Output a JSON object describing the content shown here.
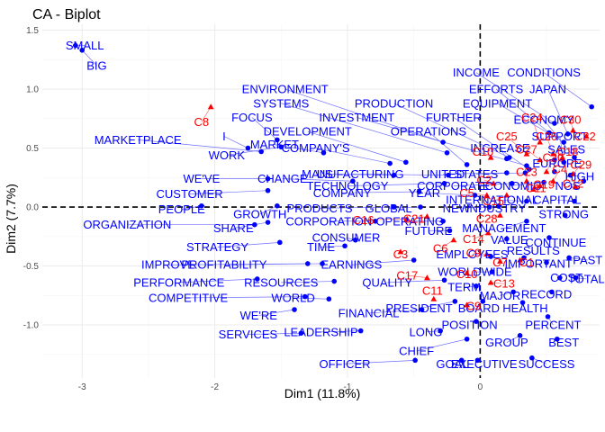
{
  "chart_data": {
    "type": "scatter",
    "title": "CA - Biplot",
    "xlabel": "Dim1 (11.8%)",
    "ylabel": "Dim2 (7.7%)",
    "xlim": [
      -3.3,
      0.9
    ],
    "ylim": [
      -1.45,
      1.55
    ],
    "x_ticks": [
      "-3",
      "-2",
      "-1",
      "0"
    ],
    "x_tick_values": [
      -3,
      -2,
      -1,
      0
    ],
    "y_ticks": [
      "-1.0",
      "-0.5",
      "0.0",
      "0.5",
      "1.0",
      "1.5"
    ],
    "y_tick_values": [
      -1.0,
      -0.5,
      0.0,
      0.5,
      1.0,
      1.5
    ],
    "grid": true,
    "reference_lines": {
      "x": 0,
      "y": 0
    },
    "colors": {
      "rows": "#0000ff",
      "columns": "#ff0000"
    },
    "series": [
      {
        "marker": "circle",
        "points": [
          {
            "label": "SMALL",
            "x": -3.05,
            "y": 1.37,
            "lx": -2.98,
            "ly": 1.37
          },
          {
            "label": "BIG",
            "x": -3.0,
            "y": 1.33,
            "lx": -2.89,
            "ly": 1.2
          },
          {
            "label": "INCOME",
            "x": 0.56,
            "y": 0.71,
            "lx": -0.03,
            "ly": 1.14
          },
          {
            "label": "CONDITIONS",
            "x": 0.84,
            "y": 0.85,
            "lx": 0.48,
            "ly": 1.14
          },
          {
            "label": "EFFORTS",
            "x": 0.52,
            "y": 0.63,
            "lx": 0.12,
            "ly": 1.0
          },
          {
            "label": "JAPAN",
            "x": 0.66,
            "y": 0.62,
            "lx": 0.51,
            "ly": 1.0
          },
          {
            "label": "ENVIRONMENT",
            "x": -0.28,
            "y": 0.55,
            "lx": -1.47,
            "ly": 1.0
          },
          {
            "label": "EQUIPMENT",
            "x": 0.63,
            "y": 0.55,
            "lx": 0.13,
            "ly": 0.88
          },
          {
            "label": "SYSTEMS",
            "x": -0.25,
            "y": 0.46,
            "lx": -1.5,
            "ly": 0.88
          },
          {
            "label": "PRODUCTION",
            "x": 0.22,
            "y": 0.42,
            "lx": -0.65,
            "ly": 0.88
          },
          {
            "label": "ECONOMY",
            "x": 0.71,
            "y": 0.42,
            "lx": 0.48,
            "ly": 0.74
          },
          {
            "label": "INVESTMENT",
            "x": 0.35,
            "y": 0.35,
            "lx": -0.93,
            "ly": 0.76
          },
          {
            "label": "FURTHER",
            "x": 0.37,
            "y": 0.32,
            "lx": -0.2,
            "ly": 0.76
          },
          {
            "label": "FOCUS",
            "x": -1.53,
            "y": 0.57,
            "lx": -1.72,
            "ly": 0.76
          },
          {
            "label": "DEVELOPMENT",
            "x": -0.56,
            "y": 0.38,
            "lx": -1.3,
            "ly": 0.64
          },
          {
            "label": "OPERATIONS",
            "x": -0.1,
            "y": 0.36,
            "lx": -0.39,
            "ly": 0.64
          },
          {
            "label": "SUPPORT",
            "x": 0.63,
            "y": 0.38,
            "lx": 0.6,
            "ly": 0.6
          },
          {
            "label": "MARKETPLACE",
            "x": -1.65,
            "y": 0.47,
            "lx": -2.58,
            "ly": 0.57
          },
          {
            "label": "I",
            "x": -1.75,
            "y": 0.5,
            "lx": -1.93,
            "ly": 0.6
          },
          {
            "label": "MARKET",
            "x": -1.18,
            "y": 0.46,
            "lx": -1.55,
            "ly": 0.53
          },
          {
            "label": "COMPANY'S",
            "x": -0.68,
            "y": 0.37,
            "lx": -1.24,
            "ly": 0.5
          },
          {
            "label": "INCREASE",
            "x": 0.2,
            "y": 0.41,
            "lx": 0.15,
            "ly": 0.5
          },
          {
            "label": "SALES",
            "x": 0.56,
            "y": 0.4,
            "lx": 0.65,
            "ly": 0.49
          },
          {
            "label": "WORK",
            "x": -1.5,
            "y": 0.51,
            "lx": -1.91,
            "ly": 0.44
          },
          {
            "label": "EUROPE",
            "x": 0.56,
            "y": 0.3,
            "lx": 0.58,
            "ly": 0.37
          },
          {
            "label": "HIGH",
            "x": 0.68,
            "y": 0.27,
            "lx": 0.75,
            "ly": 0.26
          },
          {
            "label": "US",
            "x": -0.65,
            "y": 0.27,
            "lx": -1.17,
            "ly": 0.28
          },
          {
            "label": "MANUFACTURING",
            "x": -0.24,
            "y": 0.27,
            "lx": -0.96,
            "ly": 0.28
          },
          {
            "label": "UNITED",
            "x": 0.2,
            "y": 0.29,
            "lx": -0.28,
            "ly": 0.28
          },
          {
            "label": "STATES",
            "x": 0.34,
            "y": 0.29,
            "lx": -0.03,
            "ly": 0.28
          },
          {
            "label": "WE'VE",
            "x": -1.6,
            "y": 0.24,
            "lx": -2.1,
            "ly": 0.24
          },
          {
            "label": "CHANGE",
            "x": -0.96,
            "y": 0.22,
            "lx": -1.49,
            "ly": 0.24
          },
          {
            "label": "TECHNOLOGY",
            "x": -0.27,
            "y": 0.2,
            "lx": -1.0,
            "ly": 0.18
          },
          {
            "label": "CORPORATE",
            "x": 0.24,
            "y": 0.2,
            "lx": -0.2,
            "ly": 0.18
          },
          {
            "label": "ECONOMIC",
            "x": 0.48,
            "y": 0.21,
            "lx": 0.22,
            "ly": 0.18
          },
          {
            "label": "NOS",
            "x": 0.78,
            "y": 0.22,
            "lx": 0.66,
            "ly": 0.18
          },
          {
            "label": "CUSTOMER",
            "x": -1.6,
            "y": 0.14,
            "lx": -2.19,
            "ly": 0.11
          },
          {
            "label": "COMPANY",
            "x": -0.46,
            "y": 0.13,
            "lx": -1.04,
            "ly": 0.12
          },
          {
            "label": "YEAR",
            "x": -0.04,
            "y": 0.1,
            "lx": -0.42,
            "ly": 0.12
          },
          {
            "label": "CAPITAL",
            "x": 0.71,
            "y": 0.05,
            "lx": 0.58,
            "ly": 0.06
          },
          {
            "label": "INTERNATIONAL",
            "x": 0.35,
            "y": 0.05,
            "lx": 0.09,
            "ly": 0.06
          },
          {
            "label": "PEOPLE",
            "x": -2.1,
            "y": 0.01,
            "lx": -2.25,
            "ly": -0.02
          },
          {
            "label": "GROWTH",
            "x": -1.53,
            "y": 0.01,
            "lx": -1.66,
            "ly": -0.06
          },
          {
            "label": "PRODUCTS",
            "x": -0.65,
            "y": 0.0,
            "lx": -1.21,
            "ly": -0.01
          },
          {
            "label": "GLOBAL",
            "x": -0.45,
            "y": 0.0,
            "lx": -0.69,
            "ly": -0.01
          },
          {
            "label": "NEW",
            "x": 0.07,
            "y": 0.0,
            "lx": -0.18,
            "ly": -0.01
          },
          {
            "label": "INDUSTRY",
            "x": 0.14,
            "y": 0.01,
            "lx": 0.12,
            "ly": -0.01
          },
          {
            "label": "STRONG",
            "x": 0.64,
            "y": -0.07,
            "lx": 0.63,
            "ly": -0.06
          },
          {
            "label": "ORGANIZATION",
            "x": -1.7,
            "y": -0.15,
            "lx": -2.66,
            "ly": -0.15
          },
          {
            "label": "SHARE",
            "x": -1.6,
            "y": -0.13,
            "lx": -1.86,
            "ly": -0.18
          },
          {
            "label": "CORPORATION",
            "x": -0.79,
            "y": -0.12,
            "lx": -1.14,
            "ly": -0.12
          },
          {
            "label": "OPERATING",
            "x": -0.28,
            "y": -0.12,
            "lx": -0.53,
            "ly": -0.12
          },
          {
            "label": "MANAGEMENT",
            "x": 0.35,
            "y": -0.12,
            "lx": 0.18,
            "ly": -0.18
          },
          {
            "label": "FUTURE",
            "x": -0.23,
            "y": -0.2,
            "lx": -0.39,
            "ly": -0.2
          },
          {
            "label": "CONSUMER",
            "x": -0.94,
            "y": -0.28,
            "lx": -1.01,
            "ly": -0.26
          },
          {
            "label": "VALUE",
            "x": 0.2,
            "y": -0.27,
            "lx": 0.22,
            "ly": -0.28
          },
          {
            "label": "CONTINUE",
            "x": 0.52,
            "y": -0.26,
            "lx": 0.57,
            "ly": -0.3
          },
          {
            "label": "STRATEGY",
            "x": -1.51,
            "y": -0.3,
            "lx": -1.98,
            "ly": -0.34
          },
          {
            "label": "TIME",
            "x": -1.02,
            "y": -0.33,
            "lx": -1.2,
            "ly": -0.34
          },
          {
            "label": "EMPLOYEES",
            "x": 0.08,
            "y": -0.42,
            "lx": -0.06,
            "ly": -0.4
          },
          {
            "label": "RESULTS",
            "x": 0.33,
            "y": -0.43,
            "lx": 0.4,
            "ly": -0.37
          },
          {
            "label": "IMPORTANT",
            "x": 0.5,
            "y": -0.47,
            "lx": 0.44,
            "ly": -0.48
          },
          {
            "label": "PAST",
            "x": 0.67,
            "y": -0.43,
            "lx": 0.81,
            "ly": -0.45
          },
          {
            "label": "IMPROVE",
            "x": -1.3,
            "y": -0.48,
            "lx": -2.35,
            "ly": -0.49
          },
          {
            "label": "PROFITABILITY",
            "x": -1.19,
            "y": -0.48,
            "lx": -1.93,
            "ly": -0.49
          },
          {
            "label": "EARNINGS",
            "x": -0.5,
            "y": -0.45,
            "lx": -0.97,
            "ly": -0.49
          },
          {
            "label": "WORLDWIDE",
            "x": 0.09,
            "y": -0.55,
            "lx": -0.04,
            "ly": -0.55
          },
          {
            "label": "COST",
            "x": 0.6,
            "y": -0.6,
            "lx": 0.65,
            "ly": -0.6
          },
          {
            "label": "TOTAL",
            "x": 0.72,
            "y": -0.6,
            "lx": 0.8,
            "ly": -0.61
          },
          {
            "label": "PERFORMANCE",
            "x": -1.68,
            "y": -0.61,
            "lx": -2.27,
            "ly": -0.64
          },
          {
            "label": "RESOURCES",
            "x": -1.1,
            "y": -0.63,
            "lx": -1.5,
            "ly": -0.64
          },
          {
            "label": "QUALITY",
            "x": -0.27,
            "y": -0.62,
            "lx": -0.7,
            "ly": -0.64
          },
          {
            "label": "TERM",
            "x": -0.03,
            "y": -0.67,
            "lx": -0.12,
            "ly": -0.68
          },
          {
            "label": "COMPETITIVE",
            "x": -1.32,
            "y": -0.76,
            "lx": -2.2,
            "ly": -0.77
          },
          {
            "label": "WORLD",
            "x": -1.14,
            "y": -0.78,
            "lx": -1.41,
            "ly": -0.77
          },
          {
            "label": "MAJOR",
            "x": 0.25,
            "y": -0.72,
            "lx": 0.15,
            "ly": -0.75
          },
          {
            "label": "RECORD",
            "x": 0.54,
            "y": -0.72,
            "lx": 0.5,
            "ly": -0.74
          },
          {
            "label": "HEALTH",
            "x": 0.32,
            "y": -0.81,
            "lx": 0.34,
            "ly": -0.86
          },
          {
            "label": "BOARD",
            "x": 0.02,
            "y": -0.8,
            "lx": -0.01,
            "ly": -0.86
          },
          {
            "label": "PRESIDENT",
            "x": -0.19,
            "y": -0.8,
            "lx": -0.46,
            "ly": -0.86
          },
          {
            "label": "WE'RE",
            "x": -1.4,
            "y": -0.87,
            "lx": -1.67,
            "ly": -0.92
          },
          {
            "label": "FINANCIAL",
            "x": -0.44,
            "y": -0.87,
            "lx": -0.84,
            "ly": -0.9
          },
          {
            "label": "POSITION",
            "x": -0.03,
            "y": -0.97,
            "lx": -0.08,
            "ly": -1.0
          },
          {
            "label": "PERCENT",
            "x": 0.51,
            "y": -0.93,
            "lx": 0.55,
            "ly": -1.0
          },
          {
            "label": "SERVICES",
            "x": -1.35,
            "y": -1.07,
            "lx": -1.75,
            "ly": -1.08
          },
          {
            "label": "LEADERSHIP",
            "x": -0.9,
            "y": -1.05,
            "lx": -1.2,
            "ly": -1.06
          },
          {
            "label": "LONG",
            "x": -0.3,
            "y": -1.05,
            "lx": -0.41,
            "ly": -1.06
          },
          {
            "label": "GROUP",
            "x": 0.3,
            "y": -1.09,
            "lx": 0.2,
            "ly": -1.15
          },
          {
            "label": "BEST",
            "x": 0.58,
            "y": -1.12,
            "lx": 0.63,
            "ly": -1.15
          },
          {
            "label": "CHIEF",
            "x": -0.1,
            "y": -1.12,
            "lx": -0.48,
            "ly": -1.22
          },
          {
            "label": "OFFICER",
            "x": -0.49,
            "y": -1.3,
            "lx": -1.02,
            "ly": -1.33
          },
          {
            "label": "GOAL",
            "x": -0.14,
            "y": -1.3,
            "lx": -0.21,
            "ly": -1.33
          },
          {
            "label": "EXECUTIVE",
            "x": -0.02,
            "y": -1.3,
            "lx": 0.03,
            "ly": -1.33
          },
          {
            "label": "SUCCESS",
            "x": 0.39,
            "y": -1.28,
            "lx": 0.5,
            "ly": -1.33
          }
        ]
      },
      {
        "marker": "triangle",
        "points": [
          {
            "label": "C8",
            "x": -2.03,
            "y": 0.85,
            "lx": -2.1,
            "ly": 0.72
          },
          {
            "label": "C24",
            "x": 0.45,
            "y": 0.55,
            "lx": 0.39,
            "ly": 0.76
          },
          {
            "label": "C30",
            "x": 0.7,
            "y": 0.65,
            "lx": 0.68,
            "ly": 0.74
          },
          {
            "label": "C25",
            "x": 0.35,
            "y": 0.45,
            "lx": 0.2,
            "ly": 0.6
          },
          {
            "label": "C26",
            "x": 0.55,
            "y": 0.45,
            "lx": 0.5,
            "ly": 0.6
          },
          {
            "label": "C22",
            "x": 0.8,
            "y": 0.6,
            "lx": 0.79,
            "ly": 0.6
          },
          {
            "label": "C10",
            "x": 0.08,
            "y": 0.42,
            "lx": 0.02,
            "ly": 0.47
          },
          {
            "label": "C27",
            "x": 0.45,
            "y": 0.4,
            "lx": 0.35,
            "ly": 0.49
          },
          {
            "label": "C18",
            "x": 0.62,
            "y": 0.42,
            "lx": 0.66,
            "ly": 0.47
          },
          {
            "label": "C20",
            "x": 0.5,
            "y": 0.3,
            "lx": 0.55,
            "ly": 0.42
          },
          {
            "label": "C23",
            "x": 0.35,
            "y": 0.22,
            "lx": 0.35,
            "ly": 0.3
          },
          {
            "label": "C4",
            "x": 0.55,
            "y": 0.22,
            "lx": 0.6,
            "ly": 0.32
          },
          {
            "label": "C29",
            "x": 0.7,
            "y": 0.28,
            "lx": 0.76,
            "ly": 0.36
          },
          {
            "label": "C2",
            "x": 0.1,
            "y": 0.2,
            "lx": 0.03,
            "ly": 0.23
          },
          {
            "label": "C11",
            "x": 0.45,
            "y": 0.18,
            "lx": 0.42,
            "ly": 0.16
          },
          {
            "label": "C19",
            "x": 0.4,
            "y": 0.15,
            "lx": 0.48,
            "ly": 0.19
          },
          {
            "label": "C12",
            "x": 0.72,
            "y": 0.17,
            "lx": 0.7,
            "ly": 0.2
          },
          {
            "label": "C5",
            "x": 0.05,
            "y": 0.1,
            "lx": -0.1,
            "ly": 0.12
          },
          {
            "label": "C15",
            "x": 0.2,
            "y": 0.1,
            "lx": 0.1,
            "ly": 0.05
          },
          {
            "label": "C21",
            "x": -0.4,
            "y": -0.08,
            "lx": -0.5,
            "ly": -0.1
          },
          {
            "label": "C28",
            "x": 0.15,
            "y": -0.07,
            "lx": 0.05,
            "ly": -0.1
          },
          {
            "label": "C16",
            "x": -0.55,
            "y": -0.1,
            "lx": -0.88,
            "ly": -0.11
          },
          {
            "label": "C14",
            "x": 0.06,
            "y": -0.22,
            "lx": -0.05,
            "ly": -0.27
          },
          {
            "label": "C3",
            "x": -0.6,
            "y": -0.38,
            "lx": -0.6,
            "ly": -0.4
          },
          {
            "label": "C6",
            "x": -0.2,
            "y": -0.28,
            "lx": -0.3,
            "ly": -0.35
          },
          {
            "label": "C9",
            "x": 0.05,
            "y": -0.4,
            "lx": -0.05,
            "ly": -0.39
          },
          {
            "label": "C7",
            "x": 0.15,
            "y": -0.46,
            "lx": 0.15,
            "ly": -0.47
          },
          {
            "label": "C1",
            "x": 0.3,
            "y": -0.45,
            "lx": 0.35,
            "ly": -0.47
          },
          {
            "label": "C17",
            "x": -0.4,
            "y": -0.6,
            "lx": -0.55,
            "ly": -0.58
          },
          {
            "label": "C10",
            "x": -0.1,
            "y": -0.56,
            "lx": -0.1,
            "ly": -0.57
          },
          {
            "label": "C13",
            "x": 0.08,
            "y": -0.64,
            "lx": 0.18,
            "ly": -0.65
          },
          {
            "label": "C11",
            "x": -0.35,
            "y": -0.78,
            "lx": -0.36,
            "ly": -0.71
          },
          {
            "label": "C9",
            "x": -0.1,
            "y": -0.83,
            "lx": -0.05,
            "ly": -0.84
          }
        ]
      }
    ]
  }
}
